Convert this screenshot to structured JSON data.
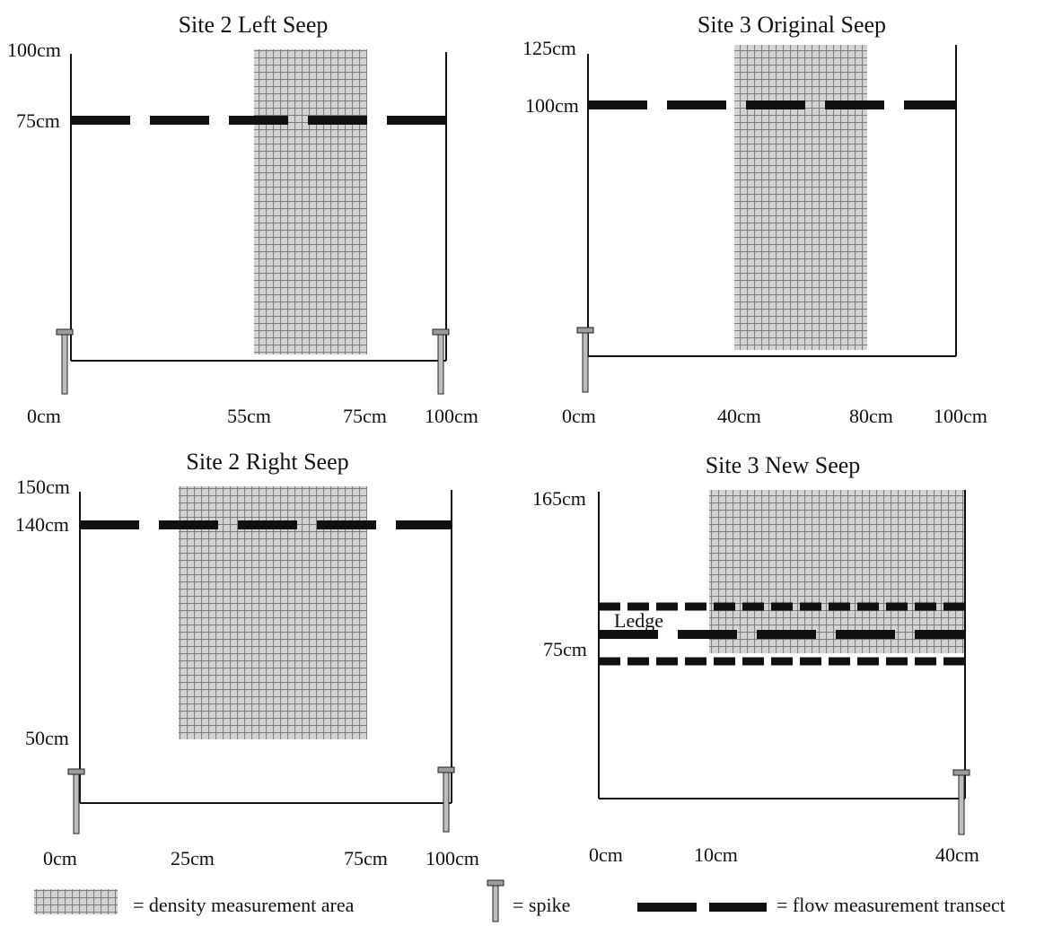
{
  "panels": {
    "top_left": {
      "title": "Site 2 Left Seep",
      "y_top_label": "100cm",
      "y_mid_label": "75cm",
      "x_labels": [
        "0cm",
        "55cm",
        "75cm",
        "100cm"
      ]
    },
    "top_right": {
      "title": "Site 3 Original Seep",
      "y_top_label": "125cm",
      "y_mid_label": "100cm",
      "x_labels": [
        "0cm",
        "40cm",
        "80cm",
        "100cm"
      ]
    },
    "bottom_left": {
      "title": "Site 2 Right Seep",
      "y_top_label": "150cm",
      "y_mid_label": "140cm",
      "y_low_label": "50cm",
      "x_labels": [
        "0cm",
        "25cm",
        "75cm",
        "100cm"
      ]
    },
    "bottom_right": {
      "title": "Site 3 New Seep",
      "y_top_label": "165cm",
      "y_mid_label": "75cm",
      "ledge_label": "Ledge",
      "x_labels": [
        "0cm",
        "10cm",
        "40cm"
      ]
    }
  },
  "legend": {
    "density": "= density measurement area",
    "spike": "= spike",
    "flow": "= flow measurement transect"
  },
  "colors": {
    "line": "#111111",
    "grid_fill": "#cfcfcf",
    "grid_line": "#8a8a8a",
    "spike_fill": "#bdbdbd"
  }
}
